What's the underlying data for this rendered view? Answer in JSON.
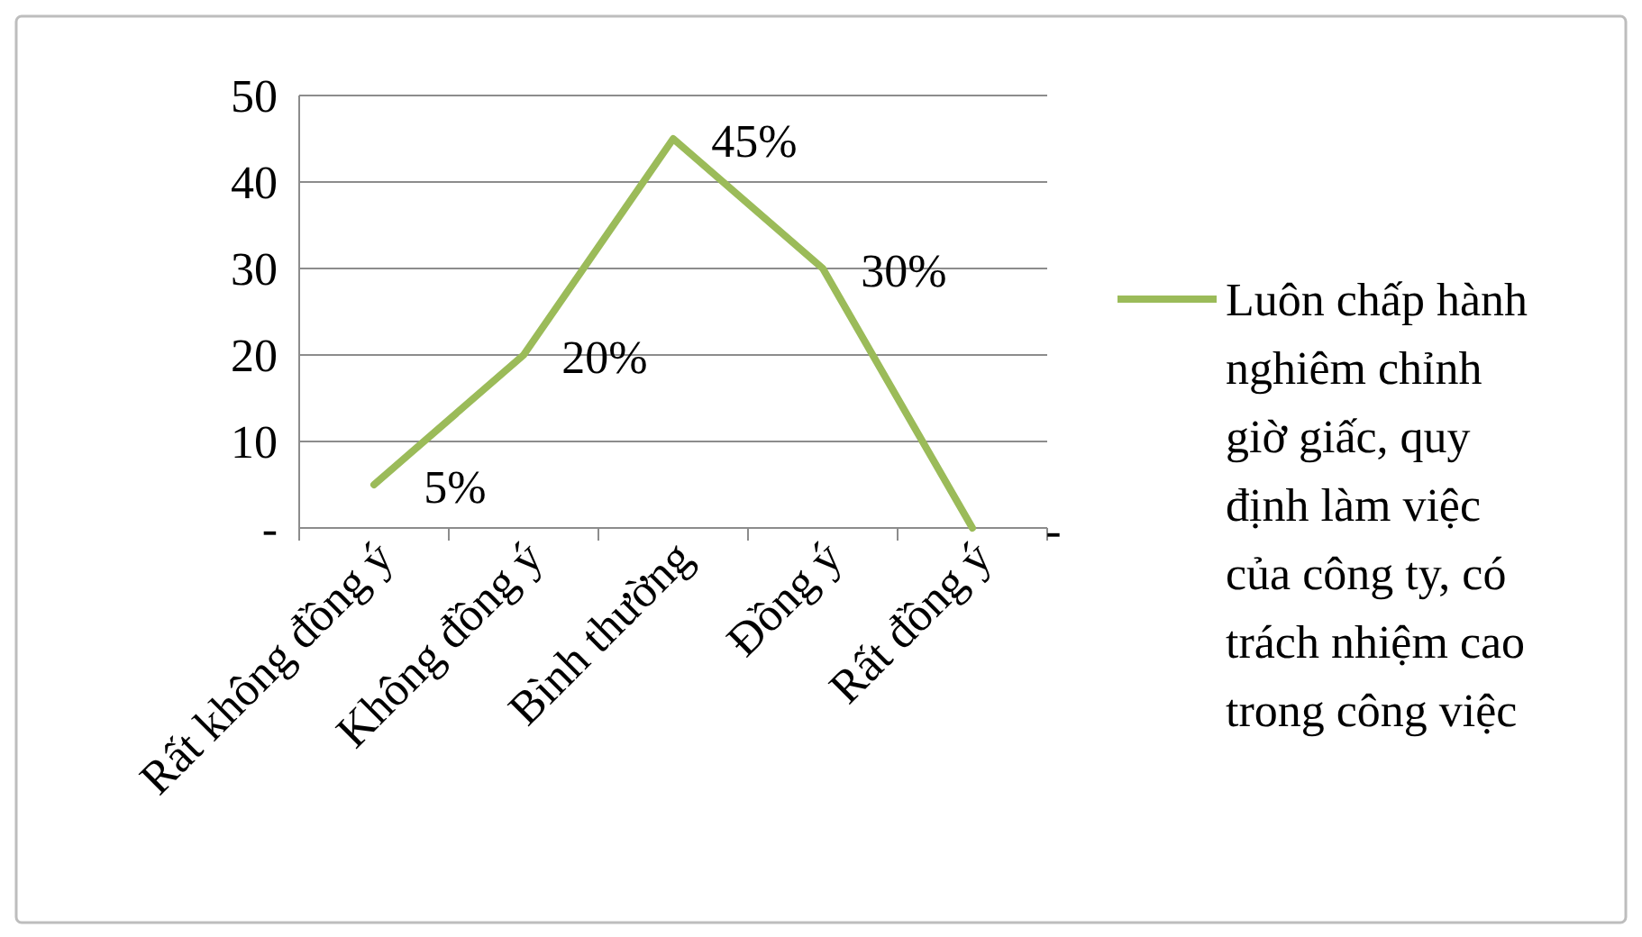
{
  "chart_data": {
    "type": "line",
    "categories": [
      "Rất không đồng ý",
      "Không đồng ý",
      "Bình thường",
      "Đồng ý",
      "Rất đồng ý"
    ],
    "series": [
      {
        "name": "Luôn chấp hành nghiêm chỉnh giờ giấc, quy định làm việc của công ty, có trách nhiệm cao trong công việc",
        "color": "#9bbb59",
        "values": [
          5,
          20,
          45,
          30,
          0
        ],
        "value_labels": [
          "5%",
          "20%",
          "45%",
          "30%",
          "-"
        ]
      }
    ],
    "ylim": [
      0,
      50
    ],
    "yticks": [
      {
        "value": 0,
        "label": "-"
      },
      10,
      20,
      30,
      40,
      50
    ],
    "grid": "y",
    "legend": "right",
    "marker": "none",
    "line_style": "solid"
  }
}
